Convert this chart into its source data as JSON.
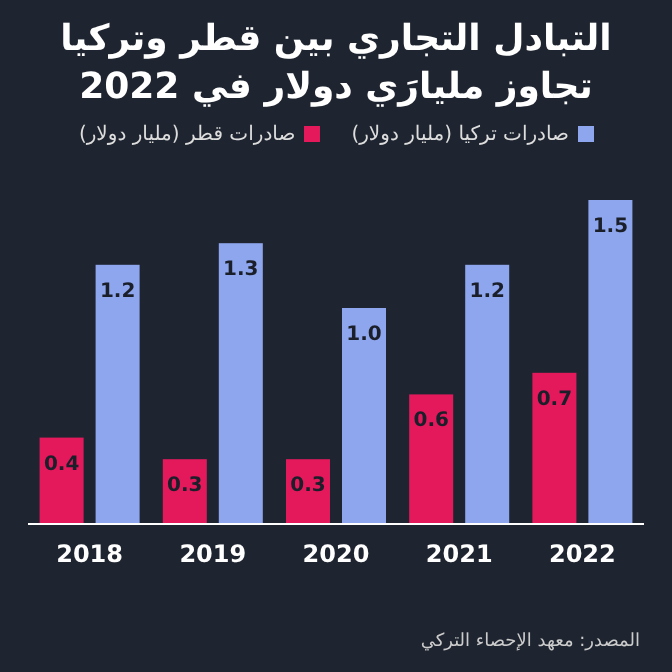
{
  "chart_data": {
    "type": "bar",
    "title": "التبادل التجاري بين قطر وتركيا تجاوز مليارَي دولار في 2022",
    "categories": [
      "2018",
      "2019",
      "2020",
      "2021",
      "2022"
    ],
    "series": [
      {
        "name": "صادرات قطر (مليار دولار)",
        "color": "#e3195c",
        "values": [
          0.4,
          0.3,
          0.3,
          0.6,
          0.7
        ],
        "value_labels": [
          "0.4",
          "0.3",
          "0.3",
          "0.6",
          "0.7"
        ]
      },
      {
        "name": "صادرات تركيا (مليار دولار)",
        "color": "#8ea6ee",
        "values": [
          1.2,
          1.3,
          1.0,
          1.2,
          1.5
        ],
        "value_labels": [
          "1.2",
          "1.3",
          "1.0",
          "1.2",
          "1.5"
        ]
      }
    ],
    "legend": "top",
    "annotations": [
      "المصدر: معهد الإحصاء التركي"
    ]
  }
}
